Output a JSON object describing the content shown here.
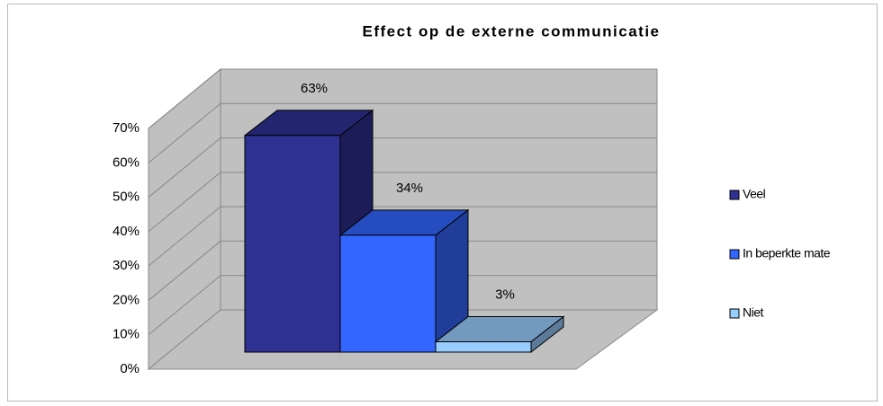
{
  "chart_data": {
    "type": "bar3d",
    "title": "Effect op de externe communicatie",
    "categories": [
      null
    ],
    "series": [
      {
        "name": "Veel",
        "color": "#2e3192",
        "values": [
          63
        ],
        "value_labels": [
          "63%"
        ]
      },
      {
        "name": "In beperkte mate",
        "color": "#3366ff",
        "values": [
          34
        ],
        "value_labels": [
          "34%"
        ]
      },
      {
        "name": "Niet",
        "color": "#99ccff",
        "values": [
          3
        ],
        "value_labels": [
          "3%"
        ]
      }
    ],
    "ylim": [
      0,
      70
    ],
    "yticks": [
      {
        "value": 0,
        "label": "0%"
      },
      {
        "value": 10,
        "label": "10%"
      },
      {
        "value": 20,
        "label": "20%"
      },
      {
        "value": 30,
        "label": "30%"
      },
      {
        "value": 40,
        "label": "40%"
      },
      {
        "value": 50,
        "label": "50%"
      },
      {
        "value": 60,
        "label": "60%"
      },
      {
        "value": 70,
        "label": "70%"
      }
    ],
    "grid": true,
    "legend": "right"
  }
}
